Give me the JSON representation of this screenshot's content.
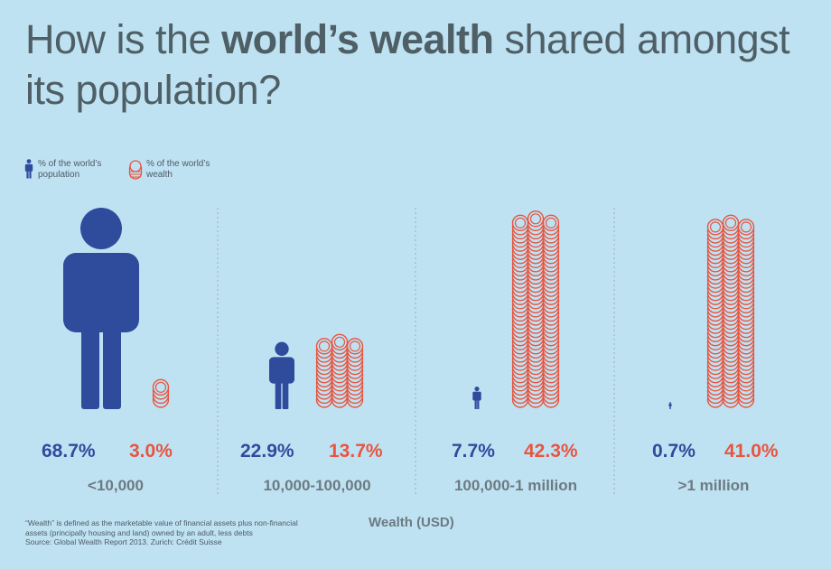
{
  "title": {
    "part1": "How is the ",
    "bold": "world’s wealth",
    "part2": " shared amongst its population?"
  },
  "legend": {
    "population": "% of the world’s population",
    "wealth": "% of the world’s wealth"
  },
  "colors": {
    "population": "#2f4b9c",
    "wealth": "#e9543e",
    "background": "#bfe2f3",
    "category_label": "#6c7a82",
    "divider": "#9fb6c3"
  },
  "chart_data": {
    "type": "bar",
    "xlabel": "Wealth (USD)",
    "categories": [
      "<10,000",
      "10,000-100,000",
      "100,000-1 million",
      ">1 million"
    ],
    "series": [
      {
        "name": "% of the world’s population",
        "values": [
          68.7,
          22.9,
          7.7,
          0.7
        ],
        "labels": [
          "68.7%",
          "22.9%",
          "7.7%",
          "0.7%"
        ]
      },
      {
        "name": "% of the world’s wealth",
        "values": [
          3.0,
          13.7,
          42.3,
          41.0
        ],
        "labels": [
          "3.0%",
          "13.7%",
          "42.3%",
          "41.0%"
        ]
      }
    ]
  },
  "footnote": {
    "line1": "“Wealth” is defined as the marketable value of financial assets plus non-financial",
    "line2": "assets (principally housing and land) owned by an adult, less debts",
    "line3": "Source: Global Wealth Report 2013. Zurich: Crédit Suisse"
  }
}
